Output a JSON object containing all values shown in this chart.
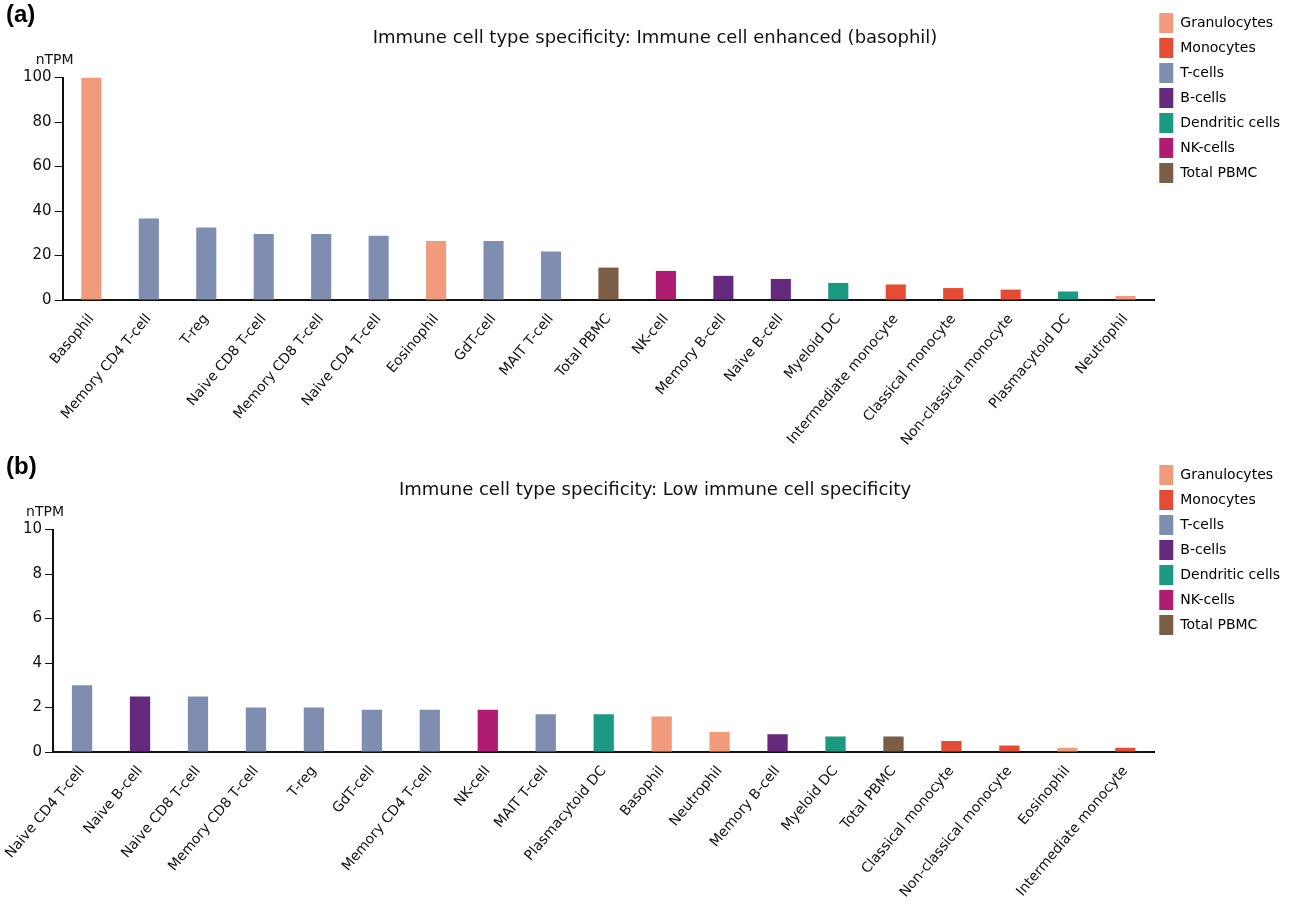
{
  "chart_data": [
    {
      "type": "bar",
      "title": "Immune cell type specificity: Immune cell enhanced (basophil)",
      "ylabel": "nTPM",
      "annotations": [
        "(a)"
      ],
      "categories": [
        "Basophil",
        "Memory CD4 T-cell",
        "T-reg",
        "Naive CD8 T-cell",
        "Memory CD8 T-cell",
        "Naive CD4 T-cell",
        "Eosinophil",
        "GdT-cell",
        "MAIT T-cell",
        "Total PBMC",
        "NK-cell",
        "Memory B-cell",
        "Naive B-cell",
        "Myeloid DC",
        "Intermediate monocyte",
        "Classical monocyte",
        "Non-classical monocyte",
        "Plasmacytoid DC",
        "Neutrophil"
      ],
      "series": [
        {
          "name": "Granulocytes",
          "color": "#f29b7c",
          "values": [
            100,
            null,
            null,
            null,
            null,
            null,
            26.6,
            null,
            null,
            null,
            null,
            null,
            null,
            null,
            null,
            null,
            null,
            null,
            1.8
          ]
        },
        {
          "name": "Monocytes",
          "color": "#e54c35",
          "values": [
            null,
            null,
            null,
            null,
            null,
            null,
            null,
            null,
            null,
            null,
            null,
            null,
            null,
            null,
            7.0,
            5.4,
            4.7,
            null,
            null
          ]
        },
        {
          "name": "T-cells",
          "color": "#7e8db0",
          "values": [
            null,
            36.7,
            32.6,
            29.7,
            29.7,
            28.9,
            null,
            26.6,
            21.8,
            null,
            null,
            null,
            null,
            null,
            null,
            null,
            null,
            null,
            null
          ]
        },
        {
          "name": "B-cells",
          "color": "#652a7d",
          "values": [
            null,
            null,
            null,
            null,
            null,
            null,
            null,
            null,
            null,
            null,
            null,
            10.9,
            9.5,
            null,
            null,
            null,
            null,
            null,
            null
          ]
        },
        {
          "name": "Dendritic cells",
          "color": "#1b9983",
          "values": [
            null,
            null,
            null,
            null,
            null,
            null,
            null,
            null,
            null,
            null,
            null,
            null,
            null,
            7.7,
            null,
            null,
            null,
            3.8,
            null
          ]
        },
        {
          "name": "NK-cells",
          "color": "#ae1c74",
          "values": [
            null,
            null,
            null,
            null,
            null,
            null,
            null,
            null,
            null,
            null,
            13.1,
            null,
            null,
            null,
            null,
            null,
            null,
            null,
            null
          ]
        },
        {
          "name": "Total PBMC",
          "color": "#7c5d45",
          "values": [
            null,
            null,
            null,
            null,
            null,
            null,
            null,
            null,
            null,
            14.6,
            null,
            null,
            null,
            null,
            null,
            null,
            null,
            null,
            null
          ]
        }
      ],
      "ylim": [
        0,
        100
      ],
      "yticks": [
        0,
        20,
        40,
        60,
        80,
        100
      ],
      "grid": false,
      "legend": "top right"
    },
    {
      "type": "bar",
      "title": "Immune cell type specificity: Low immune cell specificity",
      "ylabel": "nTPM",
      "annotations": [
        "(b)"
      ],
      "categories": [
        "Naive CD4 T-cell",
        "Naive B-cell",
        "Naive CD8 T-cell",
        "Memory CD8 T-cell",
        "T-reg",
        "GdT-cell",
        "Memory CD4 T-cell",
        "NK-cell",
        "MAIT T-cell",
        "Plasmacytoid DC",
        "Basophil",
        "Neutrophil",
        "Memory B-cell",
        "Myeloid DC",
        "Total PBMC",
        "Classical monocyte",
        "Non-classical monocyte",
        "Eosinophil",
        "Intermediate monocyte"
      ],
      "series": [
        {
          "name": "Granulocytes",
          "color": "#f29b7c",
          "values": [
            null,
            null,
            null,
            null,
            null,
            null,
            null,
            null,
            null,
            null,
            1.6,
            0.9,
            null,
            null,
            null,
            null,
            null,
            0.2,
            null
          ]
        },
        {
          "name": "Monocytes",
          "color": "#e54c35",
          "values": [
            null,
            null,
            null,
            null,
            null,
            null,
            null,
            null,
            null,
            null,
            null,
            null,
            null,
            null,
            null,
            0.5,
            0.3,
            null,
            0.2
          ]
        },
        {
          "name": "T-cells",
          "color": "#7e8db0",
          "values": [
            3.0,
            null,
            2.5,
            2.0,
            2.0,
            1.9,
            1.9,
            null,
            1.7,
            null,
            null,
            null,
            null,
            null,
            null,
            null,
            null,
            null,
            null
          ]
        },
        {
          "name": "B-cells",
          "color": "#652a7d",
          "values": [
            null,
            2.5,
            null,
            null,
            null,
            null,
            null,
            null,
            null,
            null,
            null,
            null,
            0.8,
            null,
            null,
            null,
            null,
            null,
            null
          ]
        },
        {
          "name": "Dendritic cells",
          "color": "#1b9983",
          "values": [
            null,
            null,
            null,
            null,
            null,
            null,
            null,
            null,
            null,
            1.7,
            null,
            null,
            null,
            0.7,
            null,
            null,
            null,
            null,
            null
          ]
        },
        {
          "name": "NK-cells",
          "color": "#ae1c74",
          "values": [
            null,
            null,
            null,
            null,
            null,
            null,
            null,
            1.9,
            null,
            null,
            null,
            null,
            null,
            null,
            null,
            null,
            null,
            null,
            null
          ]
        },
        {
          "name": "Total PBMC",
          "color": "#7c5d45",
          "values": [
            null,
            null,
            null,
            null,
            null,
            null,
            null,
            null,
            null,
            null,
            null,
            null,
            null,
            null,
            0.7,
            null,
            null,
            null,
            null
          ]
        }
      ],
      "ylim": [
        0,
        10
      ],
      "yticks": [
        0,
        2,
        4,
        6,
        8,
        10
      ],
      "grid": false,
      "legend": "top right"
    }
  ]
}
